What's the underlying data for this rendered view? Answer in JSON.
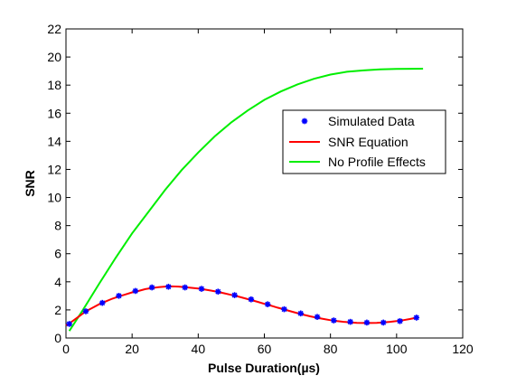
{
  "chart_data": {
    "type": "line",
    "xlabel": "Pulse Duration(µs)",
    "ylabel": "SNR",
    "xlim": [
      0,
      120
    ],
    "ylim": [
      0,
      22
    ],
    "xticks": [
      0,
      20,
      40,
      60,
      80,
      100,
      120
    ],
    "yticks": [
      0,
      2,
      4,
      6,
      8,
      10,
      12,
      14,
      16,
      18,
      20,
      22
    ],
    "grid": false,
    "legend_position": "right",
    "series": [
      {
        "name": "Simulated Data",
        "style": "markers",
        "color": "#0000ff",
        "marker": "asterisk",
        "x": [
          1,
          6,
          11,
          16,
          21,
          26,
          31,
          36,
          41,
          46,
          51,
          56,
          61,
          66,
          71,
          76,
          81,
          86,
          91,
          96,
          101,
          106
        ],
        "y": [
          1.0,
          1.9,
          2.5,
          3.0,
          3.35,
          3.6,
          3.65,
          3.6,
          3.5,
          3.3,
          3.05,
          2.75,
          2.4,
          2.05,
          1.75,
          1.5,
          1.25,
          1.15,
          1.1,
          1.1,
          1.2,
          1.45
        ]
      },
      {
        "name": "SNR Equation",
        "style": "line",
        "color": "#ff0000",
        "x": [
          0,
          2,
          4,
          6,
          8,
          10,
          12,
          14,
          16,
          18,
          20,
          22,
          24,
          26,
          28,
          30,
          32,
          34,
          36,
          38,
          40,
          42,
          44,
          46,
          48,
          50,
          52,
          54,
          56,
          58,
          60,
          62,
          64,
          66,
          68,
          70,
          72,
          74,
          76,
          78,
          80,
          82,
          84,
          86,
          88,
          90,
          92,
          94,
          96,
          98,
          100,
          102,
          104,
          106
        ],
        "y": [
          0.9,
          1.2,
          1.55,
          1.9,
          2.15,
          2.4,
          2.6,
          2.8,
          2.95,
          3.1,
          3.25,
          3.35,
          3.48,
          3.56,
          3.62,
          3.66,
          3.67,
          3.66,
          3.62,
          3.57,
          3.52,
          3.45,
          3.37,
          3.28,
          3.18,
          3.07,
          2.96,
          2.83,
          2.7,
          2.57,
          2.43,
          2.3,
          2.16,
          2.03,
          1.9,
          1.77,
          1.65,
          1.54,
          1.44,
          1.35,
          1.27,
          1.2,
          1.15,
          1.11,
          1.08,
          1.07,
          1.07,
          1.08,
          1.11,
          1.15,
          1.2,
          1.27,
          1.35,
          1.45
        ]
      },
      {
        "name": "No Profile Effects",
        "style": "line",
        "color": "#00ee00",
        "x": [
          1,
          5,
          10,
          15,
          20,
          25,
          30,
          35,
          40,
          45,
          50,
          55,
          60,
          65,
          70,
          75,
          80,
          85,
          90,
          95,
          100,
          105,
          108
        ],
        "y": [
          0.5,
          1.95,
          3.85,
          5.7,
          7.45,
          9.0,
          10.55,
          11.95,
          13.2,
          14.35,
          15.35,
          16.2,
          16.95,
          17.55,
          18.05,
          18.45,
          18.75,
          18.95,
          19.05,
          19.12,
          19.15,
          19.16,
          19.17
        ]
      }
    ]
  }
}
